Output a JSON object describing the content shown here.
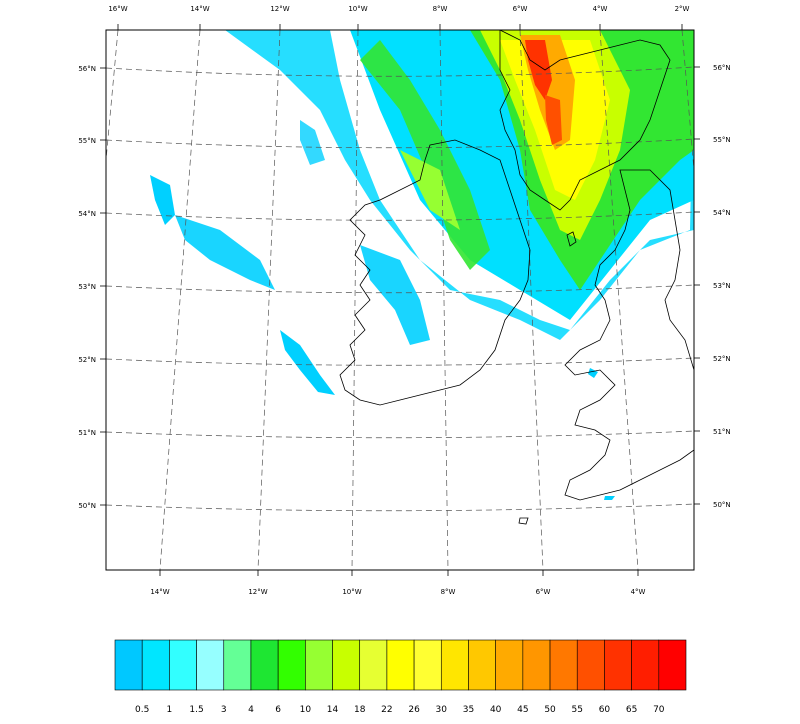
{
  "map": {
    "top_lon_labels": [
      "16°W",
      "14°W",
      "12°W",
      "10°W",
      "8°W",
      "6°W",
      "4°W",
      "2°W"
    ],
    "bottom_lon_labels": [
      "14°W",
      "12°W",
      "10°W",
      "8°W",
      "6°W",
      "4°W"
    ],
    "left_lat_labels": [
      "56°N",
      "55°N",
      "54°N",
      "53°N",
      "52°N",
      "51°N",
      "50°N"
    ],
    "right_lat_labels": [
      "56°N",
      "55°N",
      "54°N",
      "53°N",
      "52°N",
      "51°N",
      "50°N"
    ]
  },
  "colorbar": {
    "labels": [
      "0.5",
      "1",
      "1.5",
      "3",
      "4",
      "6",
      "10",
      "14",
      "18",
      "22",
      "26",
      "30",
      "35",
      "40",
      "45",
      "50",
      "55",
      "60",
      "65",
      "70"
    ],
    "colors": [
      "#00c8ff",
      "#00e6ff",
      "#32ffff",
      "#96ffff",
      "#64ff96",
      "#1ee632",
      "#32ff00",
      "#96ff32",
      "#c8ff00",
      "#e6ff32",
      "#ffff00",
      "#ffff32",
      "#ffe600",
      "#ffc800",
      "#ffaa00",
      "#ff9600",
      "#ff7800",
      "#ff5000",
      "#ff3200",
      "#ff1e00",
      "#ff0000"
    ]
  }
}
